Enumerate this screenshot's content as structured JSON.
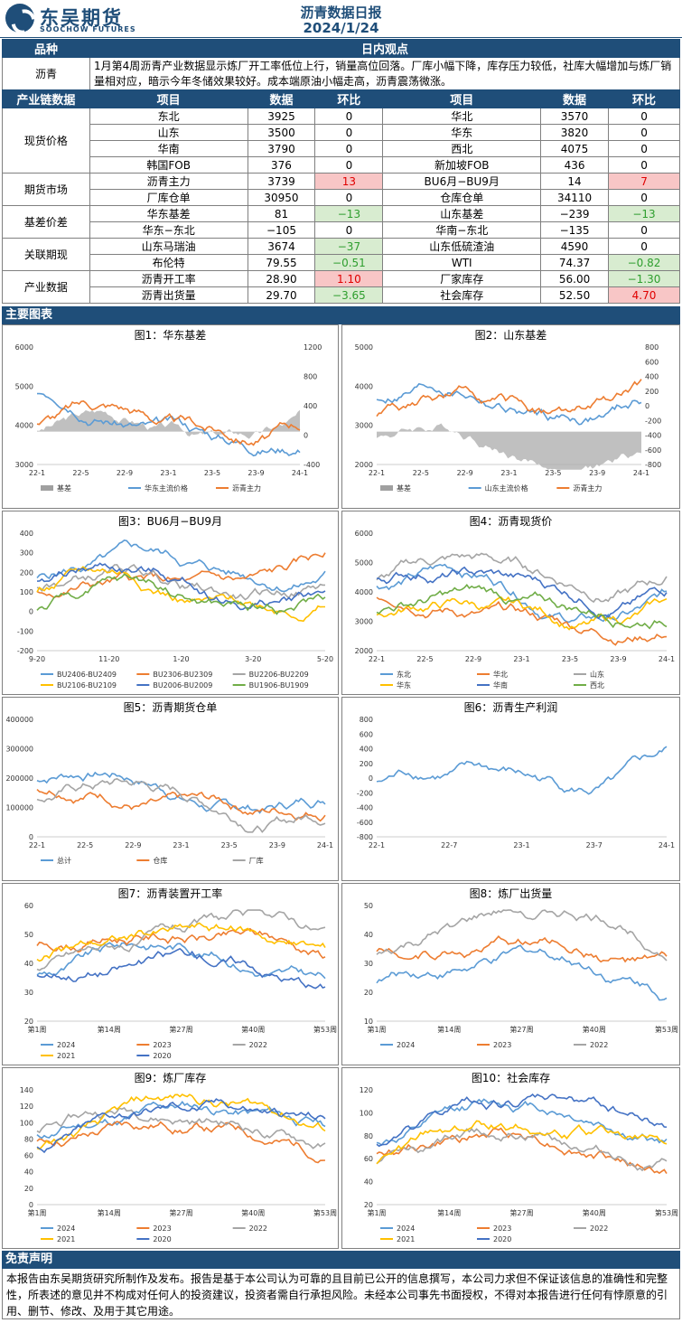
{
  "header": {
    "logo_cn": "东吴期货",
    "logo_en": "SOOCHOW FUTURES",
    "title": "沥青数据日报",
    "date": "2024/1/24"
  },
  "view": {
    "col1": "品种",
    "col2": "日内观点",
    "product": "沥青",
    "text": "1月第4周沥青产业数据显示炼厂开工率低位上行，销量高位回落。厂库小幅下降，库存压力较低，社库大幅增加与炼厂销量相对应，暗示今年冬储效果较好。成本端原油小幅走高，沥青震荡微涨。"
  },
  "table": {
    "headers": [
      "产业链数据",
      "项目",
      "数据",
      "环比",
      "项目",
      "数据",
      "环比"
    ],
    "groups": [
      {
        "name": "现货价格",
        "rows": [
          [
            "东北",
            "3925",
            "0",
            "",
            "华北",
            "3570",
            "0",
            ""
          ],
          [
            "山东",
            "3500",
            "0",
            "",
            "华东",
            "3820",
            "0",
            ""
          ],
          [
            "华南",
            "3790",
            "0",
            "",
            "西北",
            "4075",
            "0",
            ""
          ],
          [
            "韩国FOB",
            "376",
            "0",
            "",
            "新加坡FOB",
            "436",
            "0",
            ""
          ]
        ]
      },
      {
        "name": "期货市场",
        "rows": [
          [
            "沥青主力",
            "3739",
            "13",
            "red",
            "BU6月−BU9月",
            "14",
            "7",
            "red"
          ],
          [
            "厂库仓单",
            "30950",
            "0",
            "",
            "仓库仓单",
            "34110",
            "0",
            ""
          ]
        ]
      },
      {
        "name": "基差价差",
        "rows": [
          [
            "华东基差",
            "81",
            "−13",
            "green",
            "山东基差",
            "−239",
            "−13",
            "green"
          ],
          [
            "华东−东北",
            "−105",
            "0",
            "",
            "华南−东北",
            "−135",
            "0",
            ""
          ]
        ]
      },
      {
        "name": "关联期现",
        "rows": [
          [
            "山东马瑞油",
            "3674",
            "−37",
            "green",
            "山东低硫渣油",
            "4590",
            "0",
            ""
          ],
          [
            "布伦特",
            "79.55",
            "−0.51",
            "green",
            "WTI",
            "74.37",
            "−0.82",
            "green"
          ]
        ]
      },
      {
        "name": "产业数据",
        "rows": [
          [
            "沥青开工率",
            "28.90",
            "1.10",
            "red",
            "厂家库存",
            "56.00",
            "−1.30",
            "green"
          ],
          [
            "沥青出货量",
            "29.70",
            "−3.65",
            "green",
            "社会库存",
            "52.50",
            "4.70",
            "red"
          ]
        ]
      }
    ]
  },
  "section_charts": "主要图表",
  "section_disclaimer": "免责声明",
  "disclaimer": "本报告由东吴期货研究所制作及发布。报告是基于本公司认为可靠的且目前已公开的信息撰写，本公司力求但不保证该信息的准确性和完整性，所表述的意见并不构成对任何人的投资建议，投资者需自行承担风险。未经本公司事先书面授权，不得对本报告进行任何有悖原意的引用、删节、修改、及用于其它用途。",
  "charts": [
    {
      "title": "图1：华东基差",
      "xticks": [
        "22-1",
        "22-5",
        "22-9",
        "23-1",
        "23-5",
        "23-9",
        "24-1"
      ],
      "yl": [
        "3000",
        "4000",
        "5000",
        "6000"
      ],
      "yr": [
        "-400",
        "0",
        "400",
        "800",
        "1200"
      ],
      "legend": [
        "基差",
        "华东主流价格",
        "沥青主力"
      ]
    },
    {
      "title": "图2：山东基差",
      "xticks": [
        "22-1",
        "22-5",
        "22-9",
        "23-1",
        "23-5",
        "23-9",
        "24-1"
      ],
      "yl": [
        "2000",
        "3000",
        "4000",
        "5000"
      ],
      "yr": [
        "-800",
        "-600",
        "-400",
        "-200",
        "0",
        "200",
        "400",
        "600",
        "800"
      ],
      "legend": [
        "基差",
        "山东主流价格",
        "沥青主力"
      ]
    },
    {
      "title": "图3：BU6月−BU9月",
      "xticks": [
        "9-20",
        "11-20",
        "1-20",
        "3-20",
        "5-20"
      ],
      "yl": [
        "-200",
        "-100",
        "0",
        "100",
        "200",
        "300",
        "400"
      ],
      "legend": [
        "BU2406-BU2409",
        "BU2306-BU2309",
        "BU2206-BU2209",
        "BU2106-BU2109",
        "BU2006-BU2009",
        "BU1906-BU1909"
      ]
    },
    {
      "title": "图4：沥青现货价",
      "xticks": [
        "22-1",
        "22-5",
        "22-9",
        "23-1",
        "23-5",
        "23-9",
        "24-1"
      ],
      "yl": [
        "2000",
        "3000",
        "4000",
        "5000",
        "6000"
      ],
      "legend": [
        "东北",
        "华北",
        "山东",
        "华东",
        "华南",
        "西北"
      ]
    },
    {
      "title": "图5：沥青期货仓单",
      "xticks": [
        "22-1",
        "22-5",
        "22-9",
        "23-1",
        "23-5",
        "23-9",
        "24-1"
      ],
      "yl": [
        "0",
        "100000",
        "200000",
        "300000",
        "400000"
      ],
      "legend": [
        "总计",
        "仓库",
        "厂库"
      ]
    },
    {
      "title": "图6：沥青生产利润",
      "xticks": [
        "22-1",
        "22-7",
        "23-1",
        "23-7",
        "24-1"
      ],
      "yl": [
        "-800",
        "-600",
        "-400",
        "-200",
        "0",
        "200",
        "400",
        "600",
        "800"
      ],
      "legend": []
    },
    {
      "title": "图7：沥青装置开工率",
      "xticks": [
        "第1周",
        "第14周",
        "第27周",
        "第40周",
        "第53周"
      ],
      "yl": [
        "20",
        "30",
        "40",
        "50",
        "60"
      ],
      "legend": [
        "2024",
        "2023",
        "2022",
        "2021",
        "2020"
      ]
    },
    {
      "title": "图8：炼厂出货量",
      "xticks": [
        "第1周",
        "第14周",
        "第27周",
        "第40周",
        "第53周"
      ],
      "yl": [
        "10",
        "20",
        "30",
        "40",
        "50"
      ],
      "legend": [
        "2024",
        "2023",
        "2022"
      ]
    },
    {
      "title": "图9：炼厂库存",
      "xticks": [
        "第1周",
        "第14周",
        "第27周",
        "第40周",
        "第53周"
      ],
      "yl": [
        "0",
        "20",
        "40",
        "60",
        "80",
        "100",
        "120",
        "140"
      ],
      "legend": [
        "2024",
        "2023",
        "2022",
        "2021",
        "2020"
      ]
    },
    {
      "title": "图10：社会库存",
      "xticks": [
        "第1周",
        "第14周",
        "第27周",
        "第40周",
        "第53周"
      ],
      "yl": [
        "20",
        "40",
        "60",
        "80",
        "100",
        "120"
      ],
      "legend": [
        "2024",
        "2023",
        "2022",
        "2021",
        "2020"
      ]
    }
  ]
}
